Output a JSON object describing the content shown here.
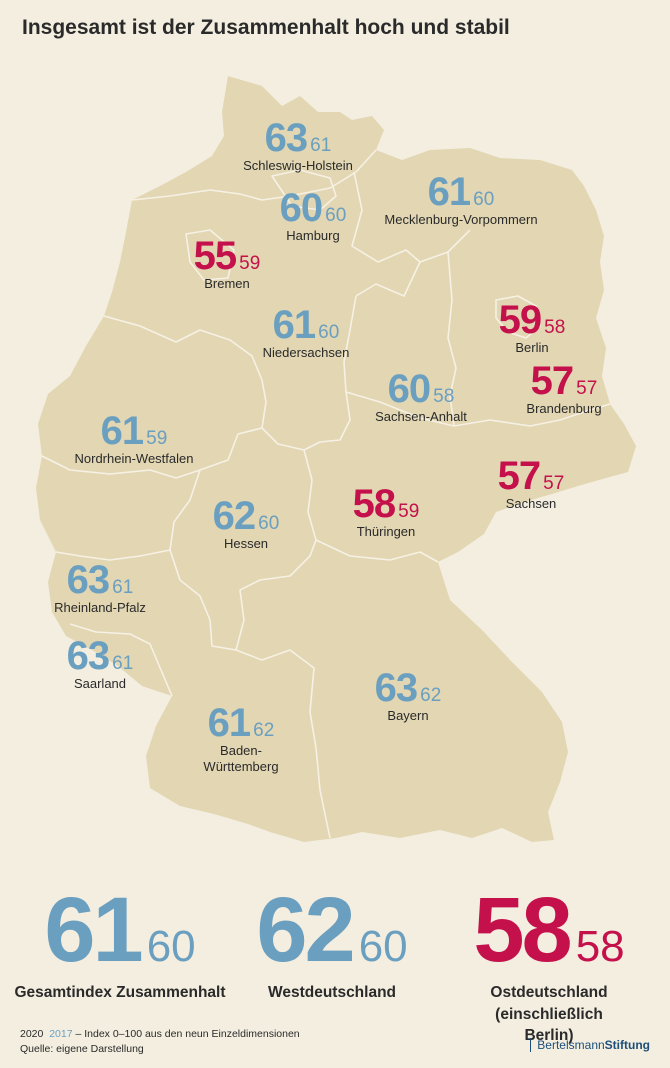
{
  "title": "Insgesamt ist der Zusammenhalt hoch und stabil",
  "colors": {
    "west": "#6b9fc0",
    "east": "#c4114b",
    "land": "#e2d6b3",
    "background": "#f3eee0"
  },
  "states": [
    {
      "name": "Schleswig-Holstein",
      "v2020": "63",
      "v2017": "61",
      "color": "blue"
    },
    {
      "name": "Hamburg",
      "v2020": "60",
      "v2017": "60",
      "color": "blue"
    },
    {
      "name": "Mecklenburg-Vorpommern",
      "v2020": "61",
      "v2017": "60",
      "color": "blue"
    },
    {
      "name": "Bremen",
      "v2020": "55",
      "v2017": "59",
      "color": "red"
    },
    {
      "name": "Niedersachsen",
      "v2020": "61",
      "v2017": "60",
      "color": "blue"
    },
    {
      "name": "Berlin",
      "v2020": "59",
      "v2017": "58",
      "color": "red"
    },
    {
      "name": "Brandenburg",
      "v2020": "57",
      "v2017": "57",
      "color": "red"
    },
    {
      "name": "Sachsen-Anhalt",
      "v2020": "60",
      "v2017": "58",
      "color": "blue"
    },
    {
      "name": "Nordrhein-Westfalen",
      "v2020": "61",
      "v2017": "59",
      "color": "blue"
    },
    {
      "name": "Sachsen",
      "v2020": "57",
      "v2017": "57",
      "color": "red"
    },
    {
      "name": "Thüringen",
      "v2020": "58",
      "v2017": "59",
      "color": "red"
    },
    {
      "name": "Hessen",
      "v2020": "62",
      "v2017": "60",
      "color": "blue"
    },
    {
      "name": "Rheinland-Pfalz",
      "v2020": "63",
      "v2017": "61",
      "color": "blue"
    },
    {
      "name": "Saarland",
      "v2020": "63",
      "v2017": "61",
      "color": "blue"
    },
    {
      "name": "Bayern",
      "v2020": "63",
      "v2017": "62",
      "color": "blue"
    },
    {
      "name": "Baden-\nWürttemberg",
      "v2020": "61",
      "v2017": "62",
      "color": "blue"
    }
  ],
  "summary": [
    {
      "label": "Gesamtindex Zusammenhalt",
      "v2020": "61",
      "v2017": "60",
      "color": "blue"
    },
    {
      "label": "Westdeutschland",
      "v2020": "62",
      "v2017": "60",
      "color": "blue"
    },
    {
      "label": "Ostdeutschland\n(einschließlich Berlin)",
      "v2020": "58",
      "v2017": "58",
      "color": "red"
    }
  ],
  "legend": {
    "year_current": "2020",
    "year_previous": "2017",
    "description": " – Index 0–100 aus den neun Einzeldimensionen"
  },
  "source": "Quelle: eigene Darstellung",
  "brand": {
    "light": "Bertelsmann",
    "bold": "Stiftung"
  }
}
